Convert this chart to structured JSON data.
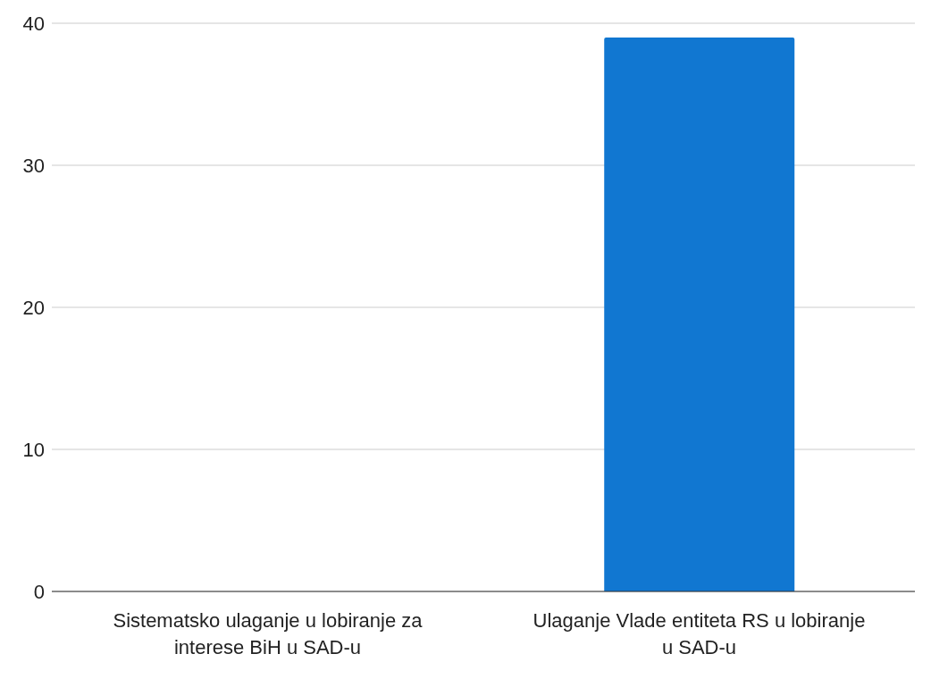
{
  "chart_data": {
    "type": "bar",
    "categories": [
      "Sistematsko ulaganje u lobiranje za interese BiH u SAD-u",
      "Ulaganje Vlade entiteta RS u lobiranje u SAD-u"
    ],
    "values": [
      0,
      39
    ],
    "color": "#1177d1",
    "ylim": [
      0,
      40
    ],
    "yticks": [
      0,
      10,
      20,
      30,
      40
    ],
    "grid": "y"
  }
}
